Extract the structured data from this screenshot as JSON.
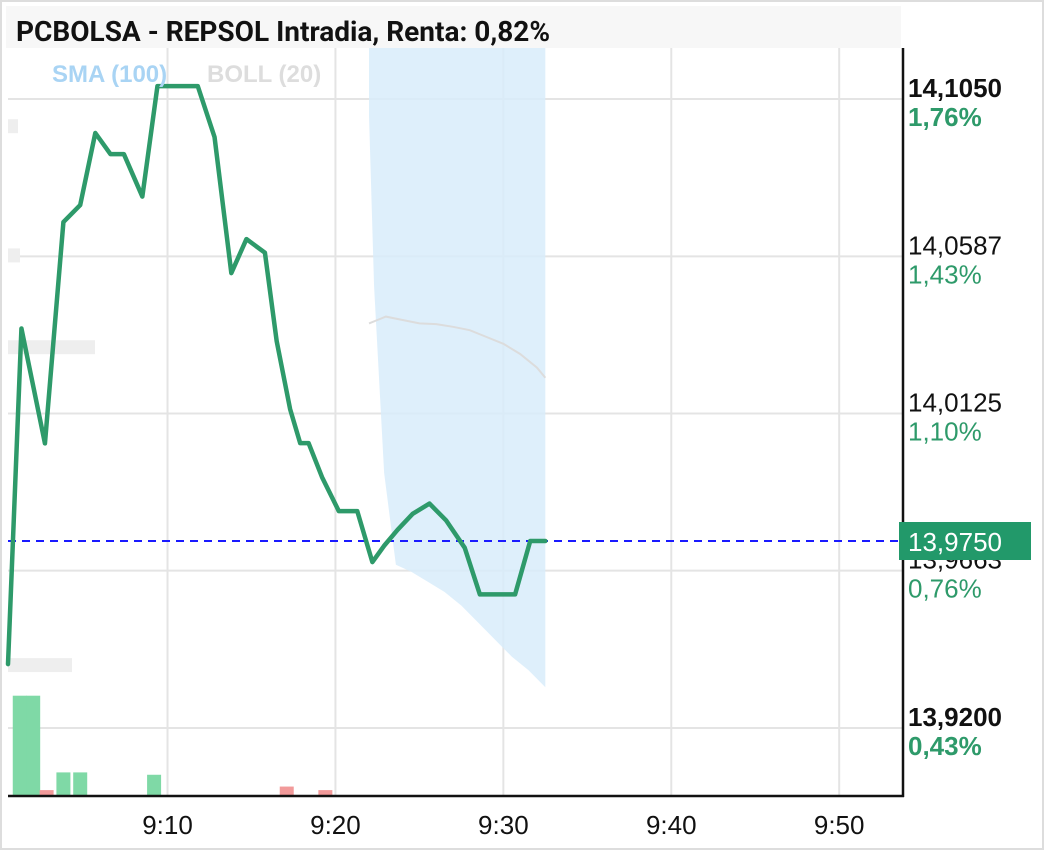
{
  "title": "PCBOLSA - REPSOL Intradia, Renta: 0,82%",
  "indicators": {
    "sma": "SMA (100)",
    "boll": "BOLL (20)"
  },
  "colors": {
    "price_line": "#2e9a6a",
    "last_price_tag": "#22996a",
    "last_price_line": "#1a1aff",
    "boll_fill": "#d8ecfa",
    "sma_line": "#dcdcdc",
    "volume_up": "#7fd9a6",
    "volume_down": "#f29a9a",
    "grid": "#e4e4e4",
    "axis": "#111111",
    "percent_text": "#2e9a6a"
  },
  "chart_data": {
    "type": "line",
    "title": "PCBOLSA - REPSOL Intradia, Renta: 0,82%",
    "x_ticks": [
      "9:10",
      "9:20",
      "9:30",
      "9:40",
      "9:50"
    ],
    "x_tick_minutes": [
      10,
      20,
      30,
      40,
      50
    ],
    "x_range_minutes": [
      0.5,
      53.8
    ],
    "ylim": [
      13.9,
      14.12
    ],
    "y_ticks": [
      {
        "price": "14,1050",
        "pct": "1,76%",
        "value": 14.105,
        "bold": true
      },
      {
        "price": "14,0587",
        "pct": "1,43%",
        "value": 14.0587,
        "bold": false
      },
      {
        "price": "14,0125",
        "pct": "1,10%",
        "value": 14.0125,
        "bold": false
      },
      {
        "price": "13,9663",
        "pct": "0,76%",
        "value": 13.9663,
        "bold": false
      },
      {
        "price": "13,9200",
        "pct": "0,43%",
        "value": 13.92,
        "bold": true
      }
    ],
    "last_price": {
      "label": "13,9750",
      "value": 13.975
    },
    "price_series": {
      "name": "REPSOL",
      "x": [
        0.5,
        1.3,
        2.7,
        3.8,
        4.8,
        5.7,
        6.6,
        7.4,
        8.5,
        9.4,
        10.2,
        11.8,
        12.8,
        13.8,
        14.7,
        15.8,
        16.5,
        17.3,
        17.9,
        18.4,
        19.2,
        20.2,
        21.3,
        22.2,
        22.9,
        23.7,
        24.6,
        25.6,
        26.6,
        27.7,
        28.6,
        29.5,
        30.7,
        31.6,
        32.5
      ],
      "y": [
        13.9388,
        14.0375,
        14.0037,
        14.0688,
        14.0738,
        14.095,
        14.0888,
        14.0888,
        14.0763,
        14.1088,
        14.1088,
        14.1088,
        14.0938,
        14.0538,
        14.0638,
        14.0598,
        14.0338,
        14.0138,
        14.0038,
        14.0038,
        13.9938,
        13.9838,
        13.9838,
        13.9688,
        13.9736,
        13.9783,
        13.983,
        13.986,
        13.981,
        13.973,
        13.9593,
        13.9593,
        13.9593,
        13.975,
        13.975
      ]
    },
    "bollinger_band": {
      "name": "BOLL (20)",
      "upper": {
        "x": [
          22.0,
          22.3,
          22.9,
          23.6,
          24.5,
          25.5,
          26.5,
          27.5,
          28.5,
          29.5,
          30.5,
          31.5,
          32.5
        ],
        "y": [
          14.12,
          14.12,
          14.12,
          14.12,
          14.12,
          14.12,
          14.12,
          14.12,
          14.12,
          14.12,
          14.12,
          14.12,
          14.12
        ]
      },
      "lower": {
        "x": [
          22.0,
          22.3,
          22.9,
          23.6,
          24.5,
          25.5,
          26.5,
          27.5,
          28.5,
          29.5,
          30.5,
          31.5,
          32.5
        ],
        "y": [
          14.1,
          14.05,
          13.995,
          13.968,
          13.966,
          13.963,
          13.96,
          13.956,
          13.951,
          13.946,
          13.941,
          13.937,
          13.932
        ]
      }
    },
    "sma_series": {
      "name": "SMA (100)",
      "x": [
        22.0,
        22.5,
        23.0,
        24.0,
        25.0,
        26.0,
        27.0,
        28.0,
        29.0,
        30.0,
        31.0,
        32.0,
        32.5
      ],
      "y": [
        14.039,
        14.04,
        14.041,
        14.04,
        14.039,
        14.0388,
        14.038,
        14.037,
        14.035,
        14.033,
        14.03,
        14.026,
        14.023
      ]
    },
    "volume_bars": [
      {
        "x": 1.2,
        "height": 0.85,
        "dir": "up"
      },
      {
        "x": 2.0,
        "height": 0.85,
        "dir": "up"
      },
      {
        "x": 2.8,
        "height": 0.05,
        "dir": "down"
      },
      {
        "x": 3.8,
        "height": 0.2,
        "dir": "up"
      },
      {
        "x": 4.8,
        "height": 0.2,
        "dir": "up"
      },
      {
        "x": 9.2,
        "height": 0.18,
        "dir": "up"
      },
      {
        "x": 17.1,
        "height": 0.08,
        "dir": "down"
      },
      {
        "x": 19.4,
        "height": 0.05,
        "dir": "down"
      }
    ],
    "grid": true
  }
}
